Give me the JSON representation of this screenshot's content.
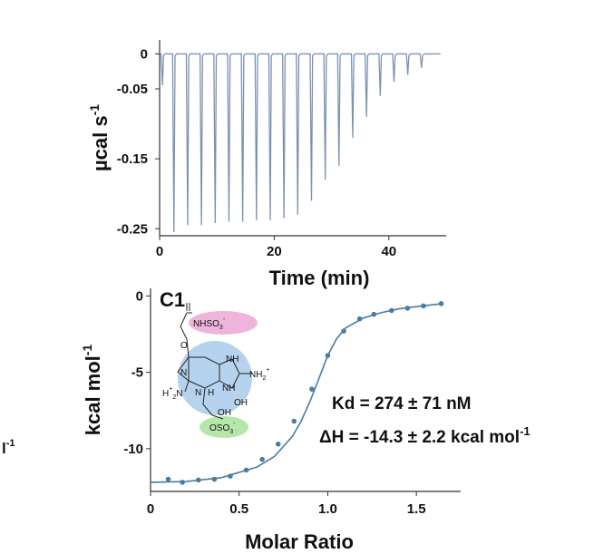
{
  "chart_data": [
    {
      "type": "line",
      "title": "",
      "xlabel": "Time (min)",
      "ylabel": "µcal s",
      "ylabel_sup": "-1",
      "xlim": [
        0,
        50
      ],
      "ylim": [
        -0.26,
        0.02
      ],
      "x_ticks": [
        0,
        20,
        40
      ],
      "x_tick_labels": [
        "0",
        "20",
        "40"
      ],
      "y_ticks": [
        0,
        -0.05,
        -0.15,
        -0.25
      ],
      "y_tick_labels": [
        "0",
        "-0.05",
        "-0.15",
        "-0.25"
      ],
      "grid": false,
      "line_color": "#7a93b2",
      "baseline": 0,
      "injection_times": [
        0.5,
        2.5,
        4.9,
        7.3,
        9.7,
        12.1,
        14.5,
        16.9,
        19.3,
        21.7,
        24.1,
        26.5,
        28.9,
        31.3,
        33.7,
        36.1,
        38.5,
        40.9,
        43.3,
        45.7
      ],
      "peak_values": [
        -0.045,
        -0.255,
        -0.245,
        -0.245,
        -0.242,
        -0.24,
        -0.24,
        -0.238,
        -0.238,
        -0.235,
        -0.23,
        -0.21,
        -0.18,
        -0.16,
        -0.12,
        -0.09,
        -0.06,
        -0.04,
        -0.03,
        -0.02
      ]
    },
    {
      "type": "scatter",
      "title": "",
      "panel_label": "C1",
      "xlabel": "Molar Ratio",
      "ylabel": "kcal mol",
      "ylabel_sup": "-1",
      "xlim": [
        0,
        1.75
      ],
      "ylim": [
        -12.8,
        0.5
      ],
      "x_ticks": [
        0,
        0.5,
        1.0,
        1.5
      ],
      "x_tick_labels": [
        "0",
        "0.5",
        "1.0",
        "1.5"
      ],
      "y_ticks": [
        0,
        -5,
        -10
      ],
      "y_tick_labels": [
        "0",
        "-5",
        "-10"
      ],
      "grid": false,
      "marker_color": "#4b7ca3",
      "points": {
        "x": [
          0.1,
          0.18,
          0.27,
          0.36,
          0.45,
          0.54,
          0.63,
          0.72,
          0.81,
          0.91,
          1.0,
          1.09,
          1.18,
          1.26,
          1.36,
          1.45,
          1.54,
          1.64
        ],
        "y": [
          -12.0,
          -12.2,
          -12.05,
          -12.0,
          -11.8,
          -11.4,
          -10.7,
          -9.7,
          -8.2,
          -6.1,
          -3.9,
          -2.3,
          -1.5,
          -1.2,
          -0.95,
          -0.8,
          -0.65,
          -0.5
        ]
      },
      "fit": {
        "x": [
          0,
          0.2,
          0.4,
          0.6,
          0.7,
          0.8,
          0.85,
          0.9,
          0.95,
          1.0,
          1.05,
          1.1,
          1.2,
          1.3,
          1.4,
          1.5,
          1.65
        ],
        "y": [
          -12.2,
          -12.15,
          -11.9,
          -11.2,
          -10.5,
          -9.2,
          -8.2,
          -6.9,
          -5.4,
          -3.9,
          -2.8,
          -2.1,
          -1.45,
          -1.1,
          -0.85,
          -0.7,
          -0.5
        ]
      },
      "annotations": {
        "kd": "Kd = 274 ± 71 nM",
        "dh": "ΔH = -14.3 ± 2.2 kcal mol",
        "dh_sup": "-1"
      },
      "structure_labels": {
        "top_group": "NHSO",
        "top_sub": "3",
        "top_charge": "-",
        "o_link": "O",
        "amine_right": "NH",
        "amine_right_sub": "2",
        "amine_right_charge": "+",
        "amine_left": "H",
        "amine_left_sub": "2",
        "amine_left_n": "N",
        "amine_left_charge": "+",
        "nh_a": "NH",
        "nh_b": "NH",
        "nh_c": "N",
        "nh_d": "N",
        "nh_e": "H",
        "oh_a": "OH",
        "oh_b": "OH",
        "bottom_group": "OSO",
        "bottom_sub": "3",
        "bottom_charge": "-"
      },
      "structure_colors": {
        "top_highlight": "#e89bd0",
        "core_highlight": "#9cc4e8",
        "bottom_highlight": "#a9e29a"
      }
    }
  ],
  "fragment": {
    "text": "l",
    "sup": "-1"
  }
}
